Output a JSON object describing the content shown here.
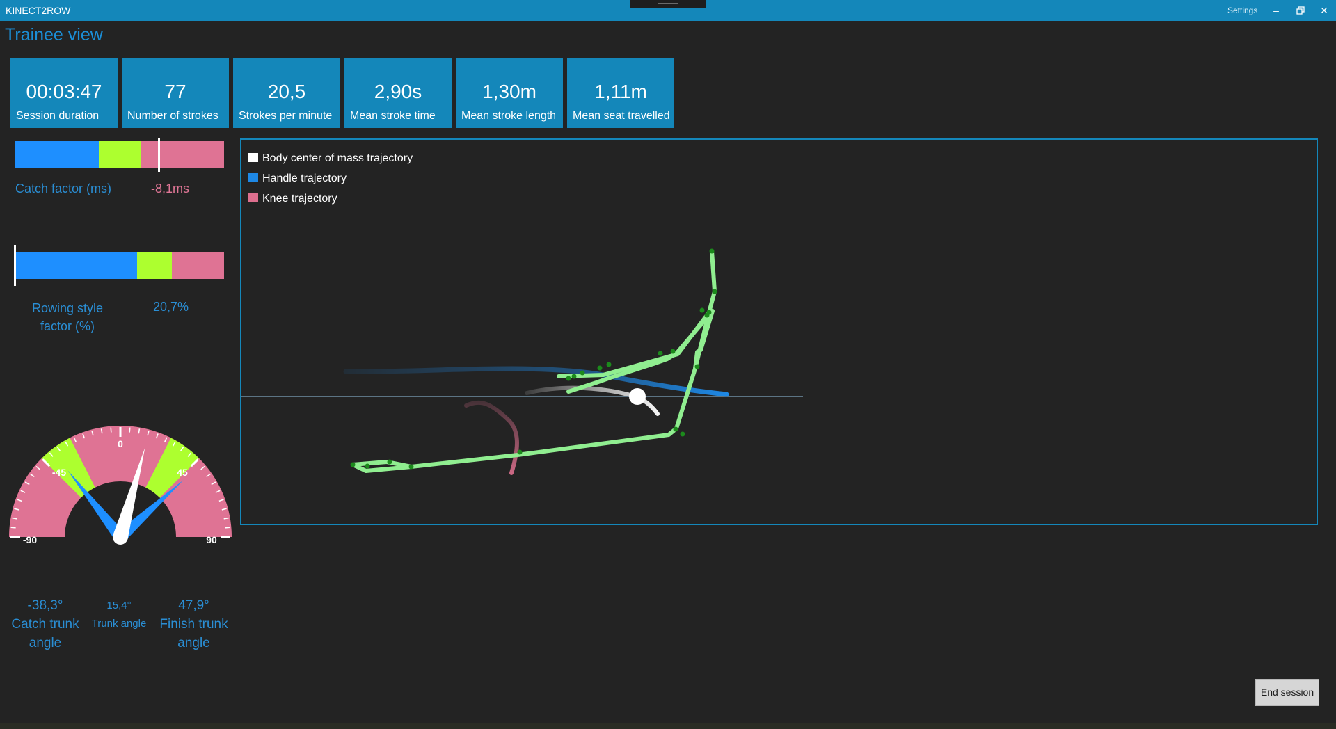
{
  "window": {
    "title": "KINECT2ROW",
    "settings_label": "Settings"
  },
  "page": {
    "title": "Trainee view"
  },
  "stats": [
    {
      "value": "00:03:47",
      "label": "Session duration"
    },
    {
      "value": "77",
      "label": "Number of strokes"
    },
    {
      "value": "20,5",
      "label": "Strokes per minute"
    },
    {
      "value": "2,90s",
      "label": "Mean stroke time"
    },
    {
      "value": "1,30m",
      "label": "Mean stroke length"
    },
    {
      "value": "1,11m",
      "label": "Mean seat travelled"
    }
  ],
  "catch_factor": {
    "label": "Catch factor (ms)",
    "value": "-8,1ms"
  },
  "rowing_style": {
    "label_line1": "Rowing style",
    "label_line2": "factor (%)",
    "value": "20,7%"
  },
  "gauge": {
    "tick_labels": [
      "-90",
      "-45",
      "0",
      "45",
      "90"
    ],
    "catch_angle_deg": -38.3,
    "trunk_angle_deg": 15.4,
    "finish_angle_deg": 47.9
  },
  "angles": {
    "catch": {
      "value": "-38,3°",
      "label_line1": "Catch trunk",
      "label_line2": "angle"
    },
    "trunk": {
      "value": "15,4°",
      "label": "Trunk angle"
    },
    "finish": {
      "value": "47,9°",
      "label_line1": "Finish trunk",
      "label_line2": "angle"
    }
  },
  "legend": [
    {
      "label": "Body center of mass trajectory",
      "color": "#ffffff"
    },
    {
      "label": "Handle trajectory",
      "color": "#1e88e5"
    },
    {
      "label": "Knee trajectory",
      "color": "#dd6f8e"
    }
  ],
  "colors": {
    "accent": "#1487ba",
    "blue": "#1e8fff",
    "green": "#adff2f",
    "pink": "#df7394",
    "skeleton": "#90ee90"
  },
  "actions": {
    "end_session": "End session"
  }
}
